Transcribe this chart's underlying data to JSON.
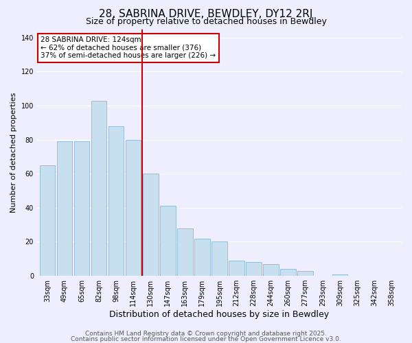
{
  "title": "28, SABRINA DRIVE, BEWDLEY, DY12 2RJ",
  "subtitle": "Size of property relative to detached houses in Bewdley",
  "xlabel": "Distribution of detached houses by size in Bewdley",
  "ylabel": "Number of detached properties",
  "bar_labels": [
    "33sqm",
    "49sqm",
    "65sqm",
    "82sqm",
    "98sqm",
    "114sqm",
    "130sqm",
    "147sqm",
    "163sqm",
    "179sqm",
    "195sqm",
    "212sqm",
    "228sqm",
    "244sqm",
    "260sqm",
    "277sqm",
    "293sqm",
    "309sqm",
    "325sqm",
    "342sqm",
    "358sqm"
  ],
  "bar_values": [
    65,
    79,
    79,
    103,
    88,
    80,
    60,
    41,
    28,
    22,
    20,
    9,
    8,
    7,
    4,
    3,
    0,
    1,
    0,
    0,
    0
  ],
  "bar_color": "#c8dff0",
  "bar_edge_color": "#8ab8d4",
  "vline_x": 6,
  "vline_color": "#cc0000",
  "ylim": [
    0,
    145
  ],
  "yticks": [
    0,
    20,
    40,
    60,
    80,
    100,
    120,
    140
  ],
  "annotation_text": "28 SABRINA DRIVE: 124sqm\n← 62% of detached houses are smaller (376)\n37% of semi-detached houses are larger (226) →",
  "annotation_box_color": "#ffffff",
  "annotation_box_edge": "#cc0000",
  "footer1": "Contains HM Land Registry data © Crown copyright and database right 2025.",
  "footer2": "Contains public sector information licensed under the Open Government Licence v3.0.",
  "background_color": "#eeeeff",
  "grid_color": "#ffffff",
  "title_fontsize": 11,
  "subtitle_fontsize": 9,
  "ylabel_fontsize": 8,
  "xlabel_fontsize": 9,
  "tick_fontsize": 7,
  "annot_fontsize": 7.5,
  "footer_fontsize": 6.5
}
